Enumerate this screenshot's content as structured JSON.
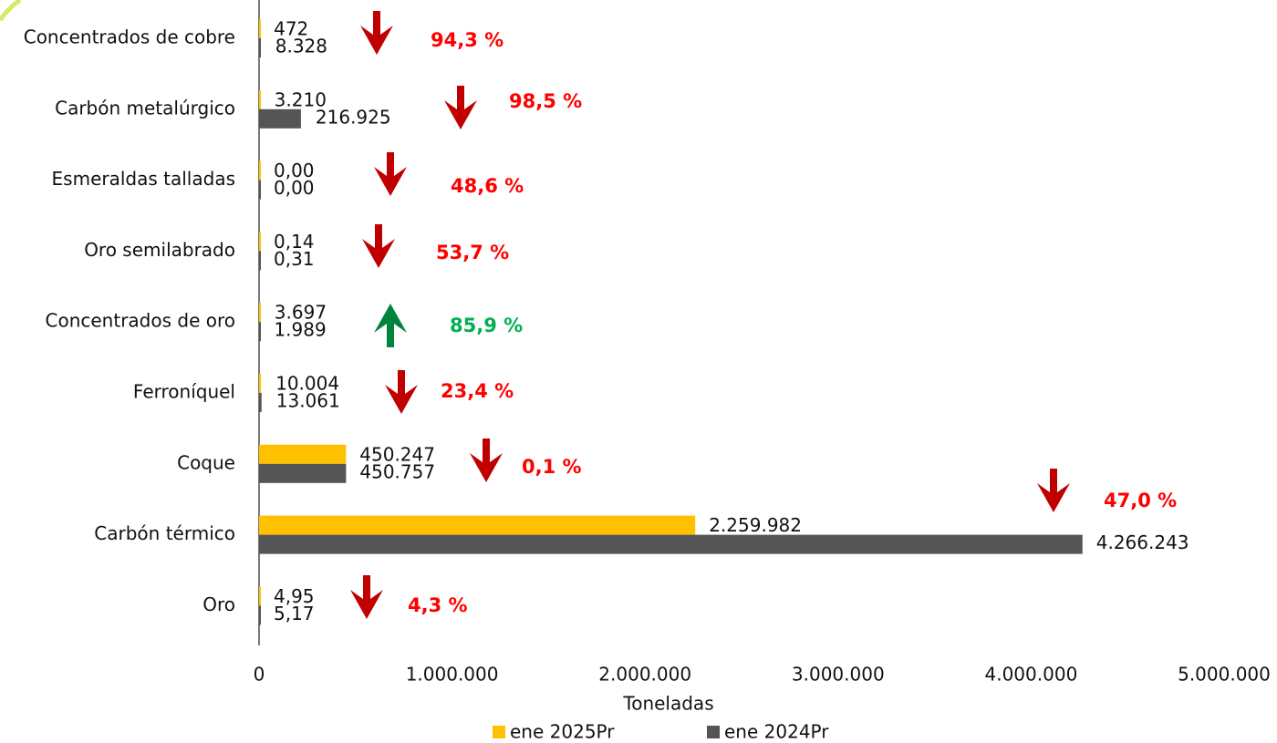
{
  "chart_data": {
    "type": "bar",
    "orientation": "horizontal",
    "x_label": "Toneladas",
    "categories": [
      "Concentrados de cobre",
      "Carbón metalúrgico",
      "Esmeraldas talladas",
      "Oro semilabrado",
      "Concentrados de oro",
      "Ferroníquel",
      "Coque",
      "Carbón térmico",
      "Oro"
    ],
    "series": [
      {
        "name": "ene 2025Pr",
        "color": "#ffc000",
        "values": [
          472,
          3210,
          0,
          0.14,
          3697,
          10004,
          450247,
          2259982,
          4.95
        ],
        "value_labels": [
          "472",
          "3.210",
          "0,00",
          "0,14",
          "3.697",
          "10.004",
          "450.247",
          "2.259.982",
          "4,95"
        ]
      },
      {
        "name": "ene 2024Pr",
        "color": "#555555",
        "values": [
          8328,
          216925,
          0,
          0.31,
          1989,
          13061,
          450757,
          4266243,
          5.17
        ],
        "value_labels": [
          "8.328",
          "216.925",
          "0,00",
          "0,31",
          "1.989",
          "13.061",
          "450.757",
          "4.266.243",
          "5,17"
        ]
      }
    ],
    "xlim": [
      0,
      5000000
    ],
    "xticks": [
      0,
      {
        "value": 1000000,
        "label": "1.000.000"
      },
      {
        "value": 2000000,
        "label": "2.000.000"
      },
      {
        "value": 3000000,
        "label": "3.000.000"
      },
      {
        "value": 4000000,
        "label": "4.000.000"
      },
      {
        "value": 5000000,
        "label": "5.000.000"
      }
    ],
    "grid": false,
    "legend": "bottom",
    "annotations": [
      {
        "text": "94,3 %",
        "direction": "down",
        "arrow_color": "#c00000",
        "text_color": "#ff0000"
      },
      {
        "text": "98,5 %",
        "direction": "down",
        "arrow_color": "#c00000",
        "text_color": "#ff0000"
      },
      {
        "text": "48,6 %",
        "direction": "down",
        "arrow_color": "#c00000",
        "text_color": "#ff0000"
      },
      {
        "text": "53,7 %",
        "direction": "down",
        "arrow_color": "#c00000",
        "text_color": "#ff0000"
      },
      {
        "text": "85,9 %",
        "direction": "up",
        "arrow_color": "#00843d",
        "text_color": "#00b050"
      },
      {
        "text": "23,4 %",
        "direction": "down",
        "arrow_color": "#c00000",
        "text_color": "#ff0000"
      },
      {
        "text": "0,1 %",
        "direction": "down",
        "arrow_color": "#c00000",
        "text_color": "#ff0000"
      },
      {
        "text": "47,0 %",
        "direction": "down",
        "arrow_color": "#c00000",
        "text_color": "#ff0000"
      },
      {
        "text": "4,3 %",
        "direction": "down",
        "arrow_color": "#c00000",
        "text_color": "#ff0000"
      }
    ]
  }
}
